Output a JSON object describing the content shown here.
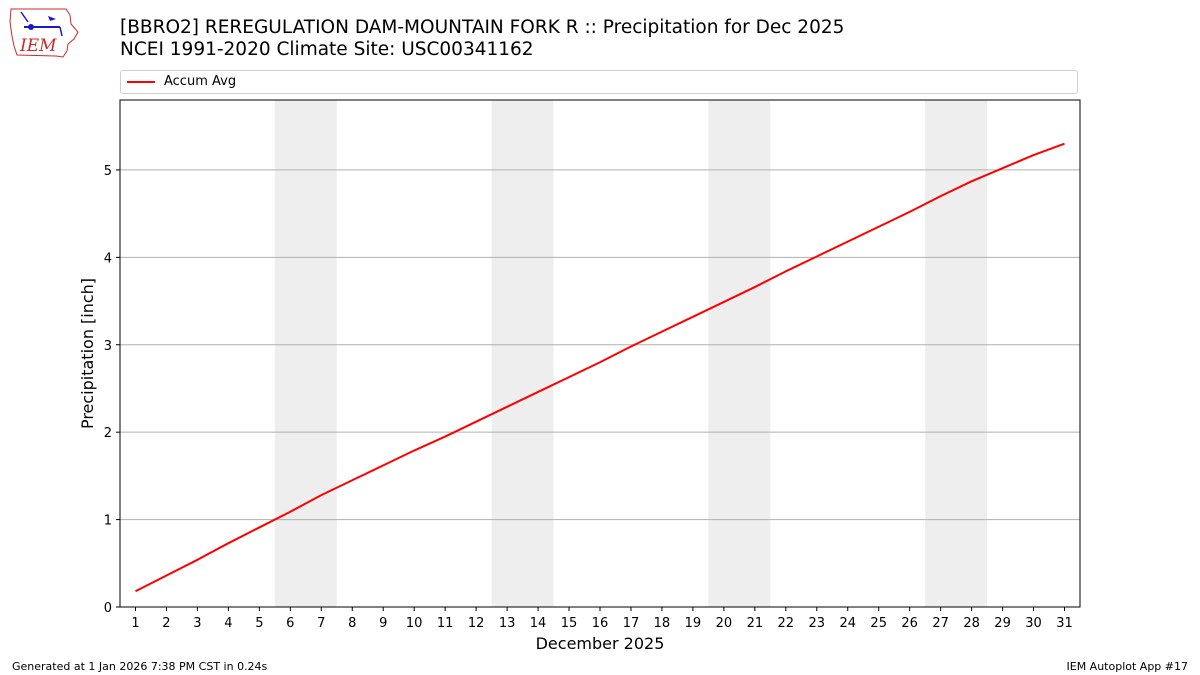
{
  "header": {
    "title_line1": "[BBRO2] REREGULATION DAM-MOUNTAIN FORK R :: Precipitation for Dec 2025",
    "title_line2": "NCEI 1991-2020 Climate Site: USC00341162"
  },
  "logo": {
    "text": "IEM"
  },
  "legend": {
    "label": "Accum Avg"
  },
  "footer": {
    "left": "Generated at 1 Jan 2026 7:38 PM CST in 0.24s",
    "right": "IEM Autoplot App #17"
  },
  "colors": {
    "line": "#ff0000",
    "weekend": "#eeeeee",
    "grid": "#b0b0b0",
    "logo": "#cc2a2a"
  },
  "chart_data": {
    "type": "line",
    "xlabel": "December 2025",
    "ylabel": "Precipitation [inch]",
    "x": [
      1,
      2,
      3,
      4,
      5,
      6,
      7,
      8,
      9,
      10,
      11,
      12,
      13,
      14,
      15,
      16,
      17,
      18,
      19,
      20,
      21,
      22,
      23,
      24,
      25,
      26,
      27,
      28,
      29,
      30,
      31
    ],
    "series": [
      {
        "name": "Accum Avg",
        "values": [
          0.18,
          0.36,
          0.54,
          0.73,
          0.91,
          1.09,
          1.28,
          1.45,
          1.62,
          1.79,
          1.95,
          2.12,
          2.29,
          2.46,
          2.63,
          2.8,
          2.98,
          3.15,
          3.32,
          3.49,
          3.66,
          3.84,
          4.01,
          4.18,
          4.35,
          4.52,
          4.7,
          4.87,
          5.02,
          5.17,
          5.3
        ]
      }
    ],
    "shaded_days": [
      [
        6,
        7
      ],
      [
        13,
        14
      ],
      [
        20,
        21
      ],
      [
        27,
        28
      ]
    ],
    "xlim": [
      0.5,
      31.5
    ],
    "ylim": [
      0,
      5.8
    ],
    "yticks": [
      0,
      1,
      2,
      3,
      4,
      5
    ],
    "grid": "y"
  }
}
